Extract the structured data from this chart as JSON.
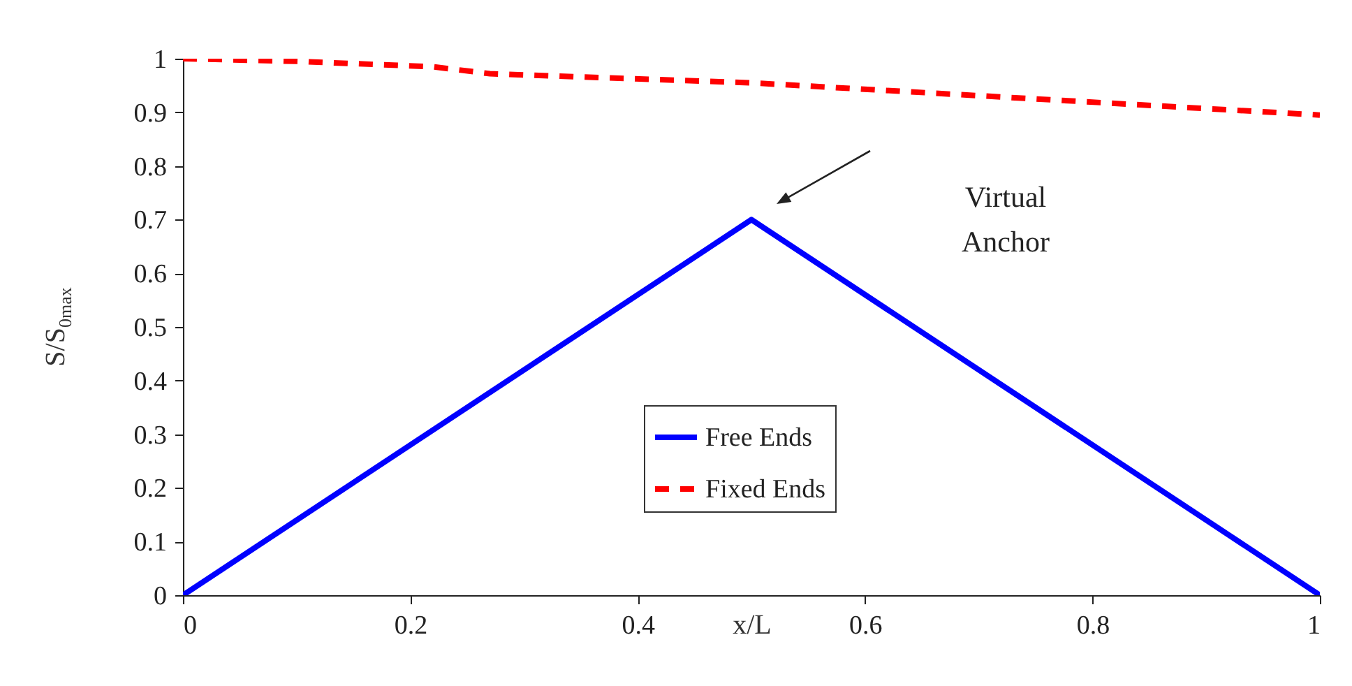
{
  "chart_data": {
    "type": "line",
    "xlabel": "x/L",
    "ylabel": "S/S$_{0max}$",
    "xlim": [
      0,
      1
    ],
    "ylim": [
      0,
      1
    ],
    "xticks": [
      0,
      0.2,
      0.4,
      0.6,
      0.8,
      1
    ],
    "yticks": [
      0,
      0.1,
      0.2,
      0.3,
      0.4,
      0.5,
      0.6,
      0.7,
      0.8,
      0.9,
      1
    ],
    "series": [
      {
        "name": "Free Ends",
        "color": "#0000ff",
        "line_style": "solid",
        "x": [
          0,
          0.5,
          1
        ],
        "values": [
          0,
          0.7,
          0
        ]
      },
      {
        "name": "Fixed Ends",
        "color": "#ff0000",
        "line_style": "dashed",
        "x": [
          0,
          0.1,
          0.22,
          0.27,
          0.5,
          0.75,
          1
        ],
        "values": [
          1,
          0.995,
          0.985,
          0.972,
          0.955,
          0.925,
          0.895
        ]
      }
    ],
    "annotations": [
      "Virtual\nAnchor"
    ],
    "legend": "bottom",
    "grid": false,
    "marker": "none"
  }
}
